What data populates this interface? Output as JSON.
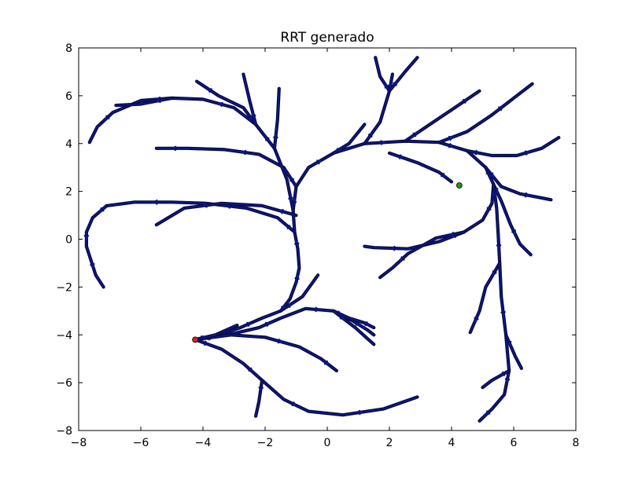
{
  "chart_data": {
    "type": "scatter",
    "title": "RRT generado",
    "xlabel": "",
    "ylabel": "",
    "xlim": [
      -8,
      8
    ],
    "ylim": [
      -8,
      8
    ],
    "xticks": [
      -8,
      -6,
      -4,
      -2,
      0,
      2,
      4,
      6,
      8
    ],
    "yticks": [
      -8,
      -6,
      -4,
      -2,
      0,
      2,
      4,
      6,
      8
    ],
    "xtick_labels": [
      "−8",
      "−6",
      "−4",
      "−2",
      "0",
      "2",
      "4",
      "6",
      "8"
    ],
    "ytick_labels": [
      "−8",
      "−6",
      "−4",
      "−2",
      "0",
      "2",
      "4",
      "6",
      "8"
    ],
    "grid": false,
    "colors": {
      "tree_edge": "#0b1a8c",
      "tree_outline": "#0a0a40",
      "start": "#d62020",
      "goal": "#1a9a1a"
    },
    "start": {
      "x": -4.25,
      "y": -4.2
    },
    "goal": {
      "x": 4.25,
      "y": 2.25
    },
    "tree_branches": [
      [
        [
          -4.25,
          -4.2
        ],
        [
          -3.5,
          -4.0
        ],
        [
          -2.8,
          -3.7
        ],
        [
          -2.1,
          -3.3
        ],
        [
          -1.5,
          -3.0
        ],
        [
          -0.8,
          -2.4
        ],
        [
          -0.3,
          -1.5
        ]
      ],
      [
        [
          -1.5,
          -3.0
        ],
        [
          -1.2,
          -2.5
        ],
        [
          -1.0,
          -1.8
        ],
        [
          -0.9,
          -1.2
        ],
        [
          -0.95,
          -0.4
        ],
        [
          -1.05,
          0.3
        ],
        [
          -1.1,
          1.2
        ],
        [
          -1.0,
          2.2
        ],
        [
          -0.6,
          3.0
        ],
        [
          0.2,
          3.6
        ],
        [
          1.2,
          4.0
        ],
        [
          2.5,
          4.1
        ],
        [
          3.6,
          4.05
        ],
        [
          4.5,
          3.7
        ],
        [
          5.1,
          3.0
        ],
        [
          5.35,
          2.3
        ],
        [
          5.3,
          1.5
        ],
        [
          5.0,
          0.8
        ],
        [
          4.4,
          0.3
        ],
        [
          3.6,
          -0.1
        ],
        [
          2.6,
          -0.4
        ],
        [
          1.5,
          -0.35
        ],
        [
          1.2,
          -0.3
        ]
      ],
      [
        [
          -1.05,
          0.3
        ],
        [
          -1.6,
          0.9
        ],
        [
          -2.6,
          1.3
        ],
        [
          -3.9,
          1.5
        ],
        [
          -5.0,
          1.55
        ],
        [
          -6.2,
          1.55
        ],
        [
          -7.1,
          1.4
        ]
      ],
      [
        [
          -7.1,
          1.4
        ],
        [
          -7.55,
          0.9
        ],
        [
          -7.75,
          0.3
        ],
        [
          -7.75,
          -0.3
        ],
        [
          -7.6,
          -0.9
        ],
        [
          -7.45,
          -1.5
        ],
        [
          -7.2,
          -2.0
        ]
      ],
      [
        [
          -1.0,
          1.0
        ],
        [
          -2.1,
          1.4
        ],
        [
          -3.4,
          1.5
        ],
        [
          -4.6,
          1.3
        ],
        [
          -5.5,
          0.6
        ]
      ],
      [
        [
          -1.0,
          2.2
        ],
        [
          -1.4,
          3.0
        ],
        [
          -2.2,
          3.55
        ],
        [
          -3.3,
          3.75
        ],
        [
          -4.5,
          3.8
        ],
        [
          -5.5,
          3.8
        ]
      ],
      [
        [
          -1.1,
          1.2
        ],
        [
          -1.3,
          2.5
        ],
        [
          -1.7,
          3.8
        ],
        [
          -2.3,
          4.8
        ],
        [
          -3.0,
          5.5
        ],
        [
          -4.0,
          5.85
        ],
        [
          -5.0,
          5.9
        ],
        [
          -6.0,
          5.8
        ],
        [
          -6.9,
          5.3
        ],
        [
          -7.4,
          4.7
        ],
        [
          -7.65,
          4.05
        ]
      ],
      [
        [
          -5.0,
          5.9
        ],
        [
          -6.0,
          5.65
        ],
        [
          -6.8,
          5.6
        ]
      ],
      [
        [
          -2.3,
          4.8
        ],
        [
          -2.7,
          5.5
        ],
        [
          -3.5,
          6.0
        ],
        [
          -4.2,
          6.6
        ]
      ],
      [
        [
          -2.3,
          4.8
        ],
        [
          -2.5,
          5.8
        ],
        [
          -2.7,
          6.9
        ]
      ],
      [
        [
          -1.7,
          3.8
        ],
        [
          -1.6,
          5.0
        ],
        [
          -1.55,
          6.3
        ]
      ],
      [
        [
          1.2,
          4.0
        ],
        [
          1.7,
          4.9
        ],
        [
          2.0,
          6.2
        ],
        [
          2.1,
          6.9
        ]
      ],
      [
        [
          2.0,
          6.2
        ],
        [
          2.5,
          7.0
        ],
        [
          2.9,
          7.6
        ]
      ],
      [
        [
          2.0,
          6.2
        ],
        [
          1.7,
          6.8
        ],
        [
          1.55,
          7.6
        ]
      ],
      [
        [
          2.5,
          4.1
        ],
        [
          3.3,
          4.8
        ],
        [
          4.1,
          5.5
        ],
        [
          4.9,
          6.2
        ]
      ],
      [
        [
          0.2,
          3.6
        ],
        [
          0.7,
          4.0
        ],
        [
          1.2,
          4.8
        ]
      ],
      [
        [
          2.0,
          3.6
        ],
        [
          2.9,
          3.2
        ],
        [
          3.6,
          2.8
        ],
        [
          4.0,
          2.4
        ]
      ],
      [
        [
          3.6,
          4.05
        ],
        [
          4.5,
          4.5
        ],
        [
          5.3,
          5.2
        ],
        [
          6.0,
          5.9
        ],
        [
          6.6,
          6.5
        ]
      ],
      [
        [
          4.5,
          3.7
        ],
        [
          5.3,
          3.5
        ],
        [
          6.1,
          3.5
        ],
        [
          6.9,
          3.8
        ],
        [
          7.45,
          4.25
        ]
      ],
      [
        [
          5.1,
          3.0
        ],
        [
          5.6,
          2.2
        ],
        [
          6.2,
          1.9
        ],
        [
          6.8,
          1.75
        ],
        [
          7.2,
          1.65
        ]
      ],
      [
        [
          5.35,
          2.3
        ],
        [
          5.6,
          1.6
        ],
        [
          5.9,
          0.6
        ],
        [
          6.2,
          -0.2
        ],
        [
          6.55,
          -0.65
        ]
      ],
      [
        [
          5.35,
          2.3
        ],
        [
          5.45,
          1.3
        ],
        [
          5.5,
          0.2
        ],
        [
          5.55,
          -1.0
        ],
        [
          5.6,
          -2.4
        ],
        [
          5.75,
          -4.0
        ],
        [
          5.85,
          -5.5
        ],
        [
          5.7,
          -6.5
        ],
        [
          5.3,
          -7.1
        ],
        [
          4.9,
          -7.6
        ]
      ],
      [
        [
          5.55,
          -1.0
        ],
        [
          5.1,
          -2.0
        ],
        [
          4.9,
          -3.0
        ],
        [
          4.6,
          -3.9
        ]
      ],
      [
        [
          5.85,
          -5.5
        ],
        [
          5.3,
          -5.9
        ],
        [
          5.0,
          -6.2
        ]
      ],
      [
        [
          5.75,
          -4.0
        ],
        [
          6.05,
          -4.9
        ],
        [
          6.25,
          -5.4
        ]
      ],
      [
        [
          4.4,
          0.3
        ],
        [
          3.5,
          0.05
        ],
        [
          2.6,
          -0.6
        ],
        [
          2.1,
          -1.2
        ],
        [
          1.7,
          -1.6
        ]
      ],
      [
        [
          -4.25,
          -4.2
        ],
        [
          -3.2,
          -4.0
        ],
        [
          -2.2,
          -3.7
        ],
        [
          -1.5,
          -3.3
        ],
        [
          -0.7,
          -2.9
        ],
        [
          0.2,
          -3.0
        ],
        [
          0.8,
          -3.4
        ],
        [
          1.3,
          -3.8
        ],
        [
          1.5,
          -4.0
        ]
      ],
      [
        [
          0.2,
          -3.0
        ],
        [
          0.7,
          -3.3
        ],
        [
          1.2,
          -3.5
        ],
        [
          1.5,
          -3.7
        ]
      ],
      [
        [
          0.2,
          -3.0
        ],
        [
          0.9,
          -3.7
        ],
        [
          1.5,
          -4.4
        ]
      ],
      [
        [
          -4.25,
          -4.2
        ],
        [
          -3.1,
          -4.0
        ],
        [
          -2.0,
          -4.1
        ],
        [
          -0.9,
          -4.5
        ],
        [
          -0.2,
          -5.0
        ],
        [
          0.3,
          -5.5
        ]
      ],
      [
        [
          -4.25,
          -4.2
        ],
        [
          -3.4,
          -4.6
        ],
        [
          -2.7,
          -5.2
        ],
        [
          -2.1,
          -5.9
        ],
        [
          -1.4,
          -6.7
        ],
        [
          -0.6,
          -7.2
        ],
        [
          0.5,
          -7.35
        ],
        [
          1.8,
          -7.1
        ],
        [
          2.9,
          -6.6
        ]
      ],
      [
        [
          -2.1,
          -5.9
        ],
        [
          -2.2,
          -6.8
        ],
        [
          -2.3,
          -7.4
        ]
      ],
      [
        [
          -4.25,
          -4.2
        ],
        [
          -3.6,
          -4.0
        ],
        [
          -2.9,
          -3.6
        ]
      ]
    ]
  }
}
